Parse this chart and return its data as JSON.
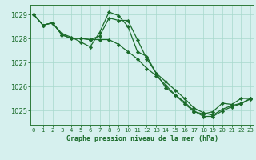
{
  "title": "Graphe pression niveau de la mer (hPa)",
  "bg_color": "#d6f0ee",
  "grid_color": "#a8d8cc",
  "line_color": "#1a6b2a",
  "spine_color": "#2d7a3a",
  "xlim": [
    -0.3,
    23.3
  ],
  "ylim": [
    1024.4,
    1029.4
  ],
  "yticks": [
    1025,
    1026,
    1027,
    1028,
    1029
  ],
  "xticks": [
    0,
    1,
    2,
    3,
    4,
    5,
    6,
    7,
    8,
    9,
    10,
    11,
    12,
    13,
    14,
    15,
    16,
    17,
    18,
    19,
    20,
    21,
    22,
    23
  ],
  "series": [
    [
      1029.0,
      1028.55,
      1028.65,
      1028.2,
      1028.05,
      1027.85,
      1027.65,
      1028.25,
      1029.1,
      1028.95,
      1028.5,
      1027.45,
      1027.25,
      1026.55,
      1026.2,
      1025.85,
      1025.5,
      1025.1,
      1024.9,
      1024.8,
      1025.05,
      1025.2,
      1025.3,
      1025.5
    ],
    [
      1029.0,
      1028.55,
      1028.65,
      1028.15,
      1028.0,
      1028.0,
      1027.95,
      1028.1,
      1028.85,
      1028.75,
      1028.75,
      1027.95,
      1027.15,
      1026.55,
      1025.95,
      1025.65,
      1025.28,
      1024.95,
      1024.85,
      1024.95,
      1025.3,
      1025.25,
      1025.5,
      1025.5
    ],
    [
      1029.0,
      1028.55,
      1028.65,
      1028.15,
      1028.0,
      1028.0,
      1027.95,
      1027.95,
      1027.95,
      1027.75,
      1027.45,
      1027.15,
      1026.75,
      1026.45,
      1026.05,
      1025.65,
      1025.35,
      1024.98,
      1024.75,
      1024.75,
      1024.98,
      1025.15,
      1025.28,
      1025.48
    ]
  ]
}
